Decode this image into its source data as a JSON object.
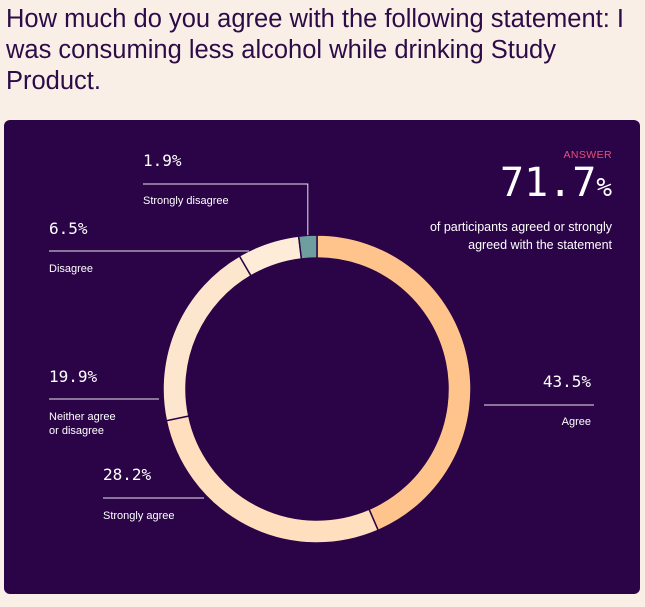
{
  "question": "How much do you agree with the following statement: I was consuming less alcohol while drinking Study Product.",
  "answer": {
    "tag": "ANSWER",
    "value": "71.7",
    "unit": "%",
    "description": "of participants agreed or strongly agreed with the statement"
  },
  "chart_data": {
    "type": "pie",
    "variant": "donut",
    "slices": [
      {
        "label": "Agree",
        "value": 43.5,
        "display": "43.5%",
        "color": "#ffc48c"
      },
      {
        "label": "Strongly agree",
        "value": 28.2,
        "display": "28.2%",
        "color": "#ffdfbe"
      },
      {
        "label": "Neither agree or disagree",
        "value": 19.9,
        "display": "19.9%",
        "color": "#fde6ce"
      },
      {
        "label": "Disagree",
        "value": 6.5,
        "display": "6.5%",
        "color": "#ffecd8"
      },
      {
        "label": "Strongly disagree",
        "value": 1.9,
        "display": "1.9%",
        "color": "#6f9ea0"
      }
    ]
  },
  "colors": {
    "page_background": "#f9efe6",
    "card_background": "#2a0446",
    "question_text": "#2c0b48",
    "accent": "#e8517a"
  }
}
